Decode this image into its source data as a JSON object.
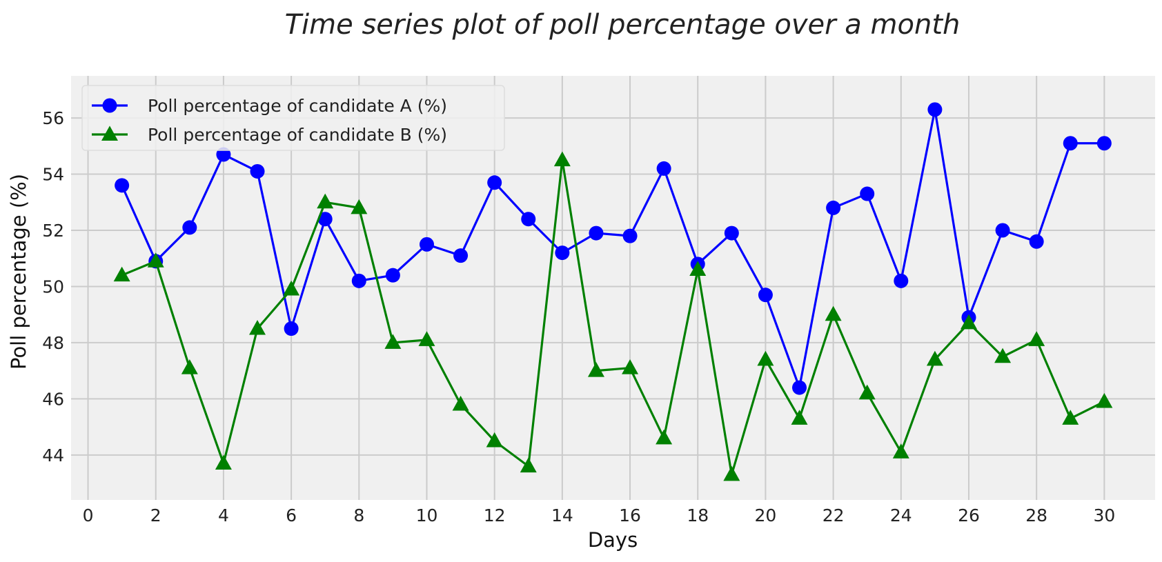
{
  "chart_data": {
    "type": "line",
    "title": "Time series plot of poll percentage over a month",
    "xlabel": "Days",
    "ylabel": "Poll percentage (%)",
    "xlim": [
      -0.5,
      31.5
    ],
    "ylim": [
      42.4,
      57.5
    ],
    "x_ticks": [
      0,
      2,
      4,
      6,
      8,
      10,
      12,
      14,
      16,
      18,
      20,
      22,
      24,
      26,
      28,
      30
    ],
    "y_ticks": [
      44,
      46,
      48,
      50,
      52,
      54,
      56
    ],
    "grid": true,
    "legend_position": "top-left",
    "background_color": "#f0f0f0",
    "grid_color": "#cbcbcb",
    "x": [
      1,
      2,
      3,
      4,
      5,
      6,
      7,
      8,
      9,
      10,
      11,
      12,
      13,
      14,
      15,
      16,
      17,
      18,
      19,
      20,
      21,
      22,
      23,
      24,
      25,
      26,
      27,
      28,
      29,
      30
    ],
    "series": [
      {
        "name": "Poll percentage of candidate A (%)",
        "color": "#0000ff",
        "marker": "circle",
        "values": [
          53.6,
          50.9,
          52.1,
          54.7,
          54.1,
          48.5,
          52.4,
          50.2,
          50.4,
          51.5,
          51.1,
          53.7,
          52.4,
          51.2,
          51.9,
          51.8,
          54.2,
          50.8,
          51.9,
          49.7,
          46.4,
          52.8,
          53.3,
          50.2,
          56.3,
          48.9,
          52.0,
          51.6,
          55.1,
          55.1
        ]
      },
      {
        "name": "Poll percentage of candidate B (%)",
        "color": "#008000",
        "marker": "triangle",
        "values": [
          50.4,
          50.9,
          47.1,
          43.7,
          48.5,
          49.9,
          53.0,
          52.8,
          48.0,
          48.1,
          45.8,
          44.5,
          43.6,
          54.5,
          47.0,
          47.1,
          44.6,
          50.6,
          43.3,
          47.4,
          45.3,
          49.0,
          46.2,
          44.1,
          47.4,
          48.7,
          47.5,
          48.1,
          45.3,
          45.9
        ]
      }
    ]
  }
}
